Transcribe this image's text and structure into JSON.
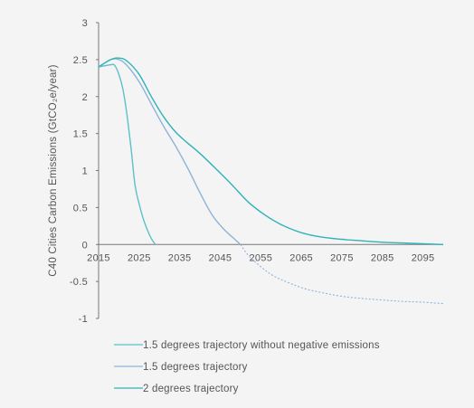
{
  "chart_data": {
    "type": "line",
    "title": "",
    "xlabel": "",
    "ylabel": "C40 Cities Carbon Emissions (GtCO₂e/year)",
    "xlim": [
      2015,
      2100
    ],
    "ylim": [
      -1,
      3
    ],
    "x_ticks": [
      "2015",
      "2025",
      "2035",
      "2045",
      "2055",
      "2065",
      "2075",
      "2085",
      "2095"
    ],
    "y_ticks": [
      "3",
      "2.5",
      "2",
      "1.5",
      "1",
      "0.5",
      "0",
      "-0.5",
      "-1"
    ],
    "legend_placement": "bottom",
    "grid": false,
    "series": [
      {
        "name": "1.5 degrees trajectory without negative emissions",
        "color": "#5bc0c8",
        "style": "solid",
        "x": [
          2015,
          2018,
          2019,
          2020,
          2021,
          2022,
          2023,
          2024,
          2025,
          2026,
          2027,
          2028,
          2029
        ],
        "y": [
          2.4,
          2.43,
          2.42,
          2.3,
          2.1,
          1.75,
          1.3,
          0.8,
          0.55,
          0.35,
          0.2,
          0.08,
          0.0
        ]
      },
      {
        "name": "1.5 degrees trajectory",
        "color": "#8fb3d9",
        "style": "solid",
        "x": [
          2015,
          2018,
          2020,
          2022,
          2025,
          2028,
          2031,
          2034,
          2037,
          2040,
          2043,
          2046,
          2048,
          2050
        ],
        "y": [
          2.4,
          2.5,
          2.5,
          2.42,
          2.2,
          1.9,
          1.6,
          1.33,
          1.03,
          0.7,
          0.4,
          0.2,
          0.1,
          0.0
        ],
        "x_negative": [
          2050,
          2052,
          2055,
          2058,
          2062,
          2066,
          2070,
          2075,
          2080,
          2085,
          2090,
          2095,
          2100
        ],
        "y_negative": [
          0.0,
          -0.15,
          -0.3,
          -0.42,
          -0.52,
          -0.6,
          -0.65,
          -0.7,
          -0.73,
          -0.75,
          -0.77,
          -0.78,
          -0.8
        ]
      },
      {
        "name": "2 degrees trajectory",
        "color": "#2fb3b8",
        "style": "solid",
        "x": [
          2015,
          2018,
          2020,
          2022,
          2025,
          2028,
          2031,
          2034,
          2037,
          2040,
          2044,
          2048,
          2052,
          2056,
          2060,
          2065,
          2070,
          2075,
          2080,
          2085,
          2090,
          2095,
          2100
        ],
        "y": [
          2.4,
          2.5,
          2.52,
          2.48,
          2.3,
          2.0,
          1.73,
          1.52,
          1.37,
          1.23,
          1.02,
          0.8,
          0.57,
          0.4,
          0.27,
          0.16,
          0.1,
          0.07,
          0.05,
          0.03,
          0.02,
          0.01,
          0.0
        ]
      }
    ]
  }
}
